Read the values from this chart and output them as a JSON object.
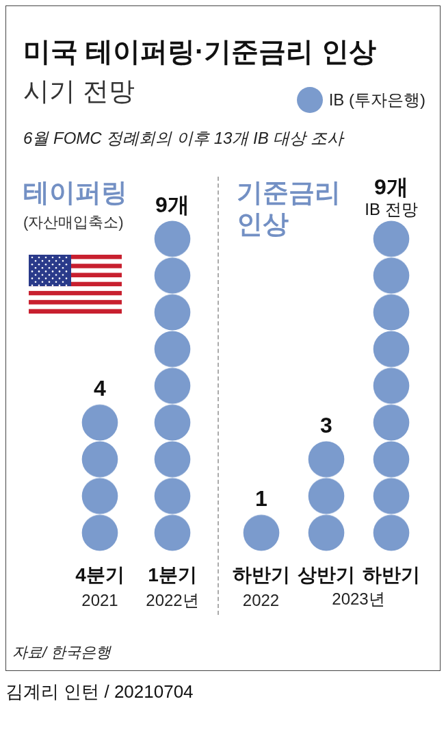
{
  "chart_data": [
    {
      "type": "bar",
      "title": "테이퍼링",
      "subtitle": "(자산매입축소)",
      "categories": [
        "4분기 2021",
        "1분기 2022년"
      ],
      "legend": "top right",
      "series": [
        {
          "name": "IB (투자은행)",
          "color": "#7b9bcd",
          "values": [
            4,
            9
          ],
          "value_labels": [
            "4",
            "9개"
          ]
        }
      ],
      "annotations": [
        "미국 테이퍼링·기준금리 인상",
        "시기 전망",
        "6월 FOMC 정례회의 이후 13개 IB 대상 조사",
        "자료/ 한국은행",
        "김계리 인턴 / 20210704"
      ]
    },
    {
      "type": "bar",
      "title": "기준금리 인상",
      "categories": [
        "하반기 2022",
        "상반기",
        "하반기"
      ],
      "series": [
        {
          "color": "#7b9bcd",
          "values": [
            1,
            3,
            9
          ],
          "value_labels": [
            "1",
            "3",
            "9개 IB 전망"
          ]
        }
      ],
      "annotations": [
        "2023년"
      ]
    }
  ]
}
